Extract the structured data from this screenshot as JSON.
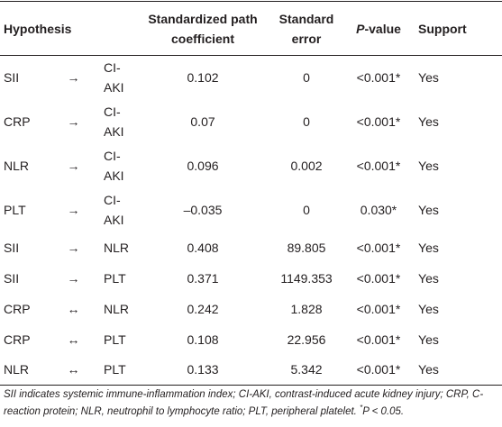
{
  "table": {
    "header": {
      "hypothesis": "Hypothesis",
      "coefficient": "Standardized path coefficient",
      "error": "Standard error",
      "pvalue": {
        "symbol": "P",
        "text": "-value"
      },
      "support": "Support"
    },
    "rows": [
      [
        "SII",
        "→",
        "CI-AKI",
        "0.102",
        "0",
        "<0.001*",
        "Yes"
      ],
      [
        "CRP",
        "→",
        "CI-AKI",
        "0.07",
        "0",
        "<0.001*",
        "Yes"
      ],
      [
        "NLR",
        "→",
        "CI-AKI",
        "0.096",
        "0.002",
        "<0.001*",
        "Yes"
      ],
      [
        "PLT",
        "→",
        "CI-AKI",
        "–0.035",
        "0",
        "0.030*",
        "Yes"
      ],
      [
        "SII",
        "→",
        "NLR",
        "0.408",
        "89.805",
        "<0.001*",
        "Yes"
      ],
      [
        "SII",
        "→",
        "PLT",
        "0.371",
        "1149.353",
        "<0.001*",
        "Yes"
      ],
      [
        "CRP",
        "↔",
        "NLR",
        "0.242",
        "1.828",
        "<0.001*",
        "Yes"
      ],
      [
        "CRP",
        "↔",
        "PLT",
        "0.108",
        "22.956",
        "<0.001*",
        "Yes"
      ],
      [
        "NLR",
        "↔",
        "PLT",
        "0.133",
        "5.342",
        "<0.001*",
        "Yes"
      ]
    ],
    "footnote": {
      "text": "SII indicates systemic immune-inflammation index; CI-AKI, contrast-induced acute kidney injury; CRP, C-reaction protein; NLR, neutrophil to lymphocyte ratio; PLT, peripheral platelet. ",
      "marker": "*",
      "symbol": "P",
      "condition": " < 0.05."
    }
  }
}
